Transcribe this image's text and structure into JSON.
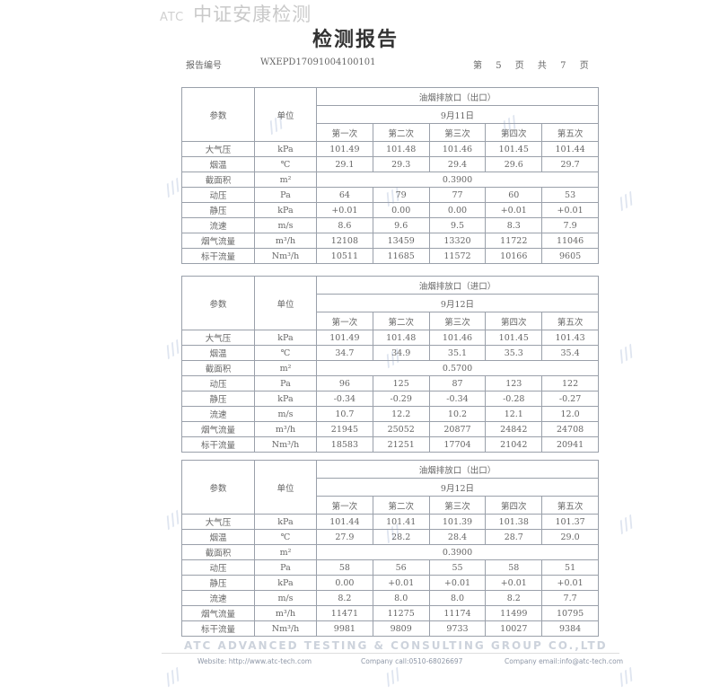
{
  "header": {
    "logo_text": "中证安康检测",
    "logo_mark": "ATC",
    "title": "检测报告",
    "report_no_label": "报告编号",
    "report_no": "WXEPD17091004100101",
    "page_label_prefix": "第",
    "page_current": "5",
    "page_label_mid": "页 共",
    "page_total": "7",
    "page_label_suffix": "页"
  },
  "column_headers": {
    "param": "参数",
    "unit": "单位",
    "runs": [
      "第一次",
      "第二次",
      "第三次",
      "第四次",
      "第五次"
    ]
  },
  "tables": [
    {
      "location": "油烟排放口（出口）",
      "date": "9月11日",
      "rows": [
        {
          "param": "大气压",
          "unit": "kPa",
          "values": [
            "101.49",
            "101.48",
            "101.46",
            "101.45",
            "101.44"
          ]
        },
        {
          "param": "烟温",
          "unit": "℃",
          "values": [
            "29.1",
            "29.3",
            "29.4",
            "29.6",
            "29.7"
          ]
        },
        {
          "param": "截面积",
          "unit": "m²",
          "merged": "0.3900"
        },
        {
          "param": "动压",
          "unit": "Pa",
          "values": [
            "64",
            "79",
            "77",
            "60",
            "53"
          ]
        },
        {
          "param": "静压",
          "unit": "kPa",
          "values": [
            "+0.01",
            "0.00",
            "0.00",
            "+0.01",
            "+0.01"
          ]
        },
        {
          "param": "流速",
          "unit": "m/s",
          "values": [
            "8.6",
            "9.6",
            "9.5",
            "8.3",
            "7.9"
          ]
        },
        {
          "param": "烟气流量",
          "unit": "m³/h",
          "values": [
            "12108",
            "13459",
            "13320",
            "11722",
            "11046"
          ]
        },
        {
          "param": "标干流量",
          "unit": "Nm³/h",
          "values": [
            "10511",
            "11685",
            "11572",
            "10166",
            "9605"
          ]
        }
      ]
    },
    {
      "location": "油烟排放口（进口）",
      "date": "9月12日",
      "rows": [
        {
          "param": "大气压",
          "unit": "kPa",
          "values": [
            "101.49",
            "101.48",
            "101.46",
            "101.45",
            "101.43"
          ]
        },
        {
          "param": "烟温",
          "unit": "℃",
          "values": [
            "34.7",
            "34.9",
            "35.1",
            "35.3",
            "35.4"
          ]
        },
        {
          "param": "截面积",
          "unit": "m²",
          "merged": "0.5700"
        },
        {
          "param": "动压",
          "unit": "Pa",
          "values": [
            "96",
            "125",
            "87",
            "123",
            "122"
          ]
        },
        {
          "param": "静压",
          "unit": "kPa",
          "values": [
            "-0.34",
            "-0.29",
            "-0.34",
            "-0.28",
            "-0.27"
          ]
        },
        {
          "param": "流速",
          "unit": "m/s",
          "values": [
            "10.7",
            "12.2",
            "10.2",
            "12.1",
            "12.0"
          ]
        },
        {
          "param": "烟气流量",
          "unit": "m³/h",
          "values": [
            "21945",
            "25052",
            "20877",
            "24842",
            "24708"
          ]
        },
        {
          "param": "标干流量",
          "unit": "Nm³/h",
          "values": [
            "18583",
            "21251",
            "17704",
            "21042",
            "20941"
          ]
        }
      ]
    },
    {
      "location": "油烟排放口（出口）",
      "date": "9月12日",
      "rows": [
        {
          "param": "大气压",
          "unit": "kPa",
          "values": [
            "101.44",
            "101.41",
            "101.39",
            "101.38",
            "101.37"
          ]
        },
        {
          "param": "烟温",
          "unit": "℃",
          "values": [
            "27.9",
            "28.2",
            "28.4",
            "28.7",
            "29.0"
          ]
        },
        {
          "param": "截面积",
          "unit": "m²",
          "merged": "0.3900"
        },
        {
          "param": "动压",
          "unit": "Pa",
          "values": [
            "58",
            "56",
            "55",
            "58",
            "51"
          ]
        },
        {
          "param": "静压",
          "unit": "kPa",
          "values": [
            "0.00",
            "+0.01",
            "+0.01",
            "+0.01",
            "+0.01"
          ]
        },
        {
          "param": "流速",
          "unit": "m/s",
          "values": [
            "8.2",
            "8.0",
            "8.0",
            "8.2",
            "7.7"
          ]
        },
        {
          "param": "烟气流量",
          "unit": "m³/h",
          "values": [
            "11471",
            "11275",
            "11174",
            "11499",
            "10795"
          ]
        },
        {
          "param": "标干流量",
          "unit": "Nm³/h",
          "values": [
            "9981",
            "9809",
            "9733",
            "10027",
            "9384"
          ]
        }
      ]
    }
  ],
  "footer": {
    "company": "ATC ADVANCED TESTING & CONSULTING GROUP CO.,LTD",
    "website": "Website: http://www.atc-tech.com",
    "phone": "Company call:0510-68026697",
    "email": "Company email:info@atc-tech.com"
  }
}
